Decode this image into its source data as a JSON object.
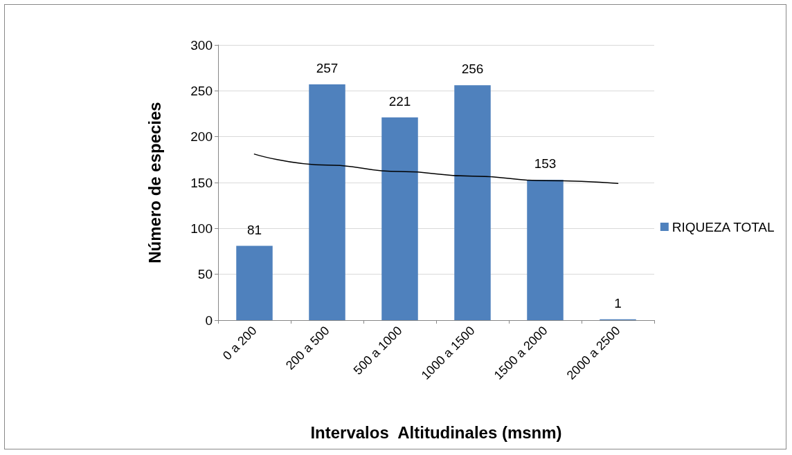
{
  "chart_data": {
    "type": "bar",
    "xlabel": "Intervalos  Altitudinales (msnm)",
    "ylabel": "Número de especies",
    "categories": [
      "0 a 200",
      "200 a 500",
      "500 a 1000",
      "1000 a 1500",
      "1500 a 2000",
      "2000 a 2500"
    ],
    "series": [
      {
        "name": "RIQUEZA TOTAL",
        "color": "#4f81bd",
        "values": [
          81,
          257,
          221,
          256,
          153,
          1
        ],
        "value_labels": [
          "81",
          "257",
          "221",
          "256",
          "153",
          "1"
        ]
      },
      {
        "type": "line",
        "color": "#000000",
        "x": [
          "0 a 200",
          "200 a 500",
          "500 a 1000",
          "1000 a 1500",
          "1500 a 2000",
          "2000 a 2500"
        ],
        "values": [
          181,
          169,
          162,
          157,
          152,
          149
        ],
        "marker": "none",
        "line_style": "solid"
      }
    ],
    "ylim": [
      0,
      300
    ],
    "yticks": [
      0,
      50,
      100,
      150,
      200,
      250,
      300
    ],
    "grid": "y",
    "legend": "right"
  }
}
